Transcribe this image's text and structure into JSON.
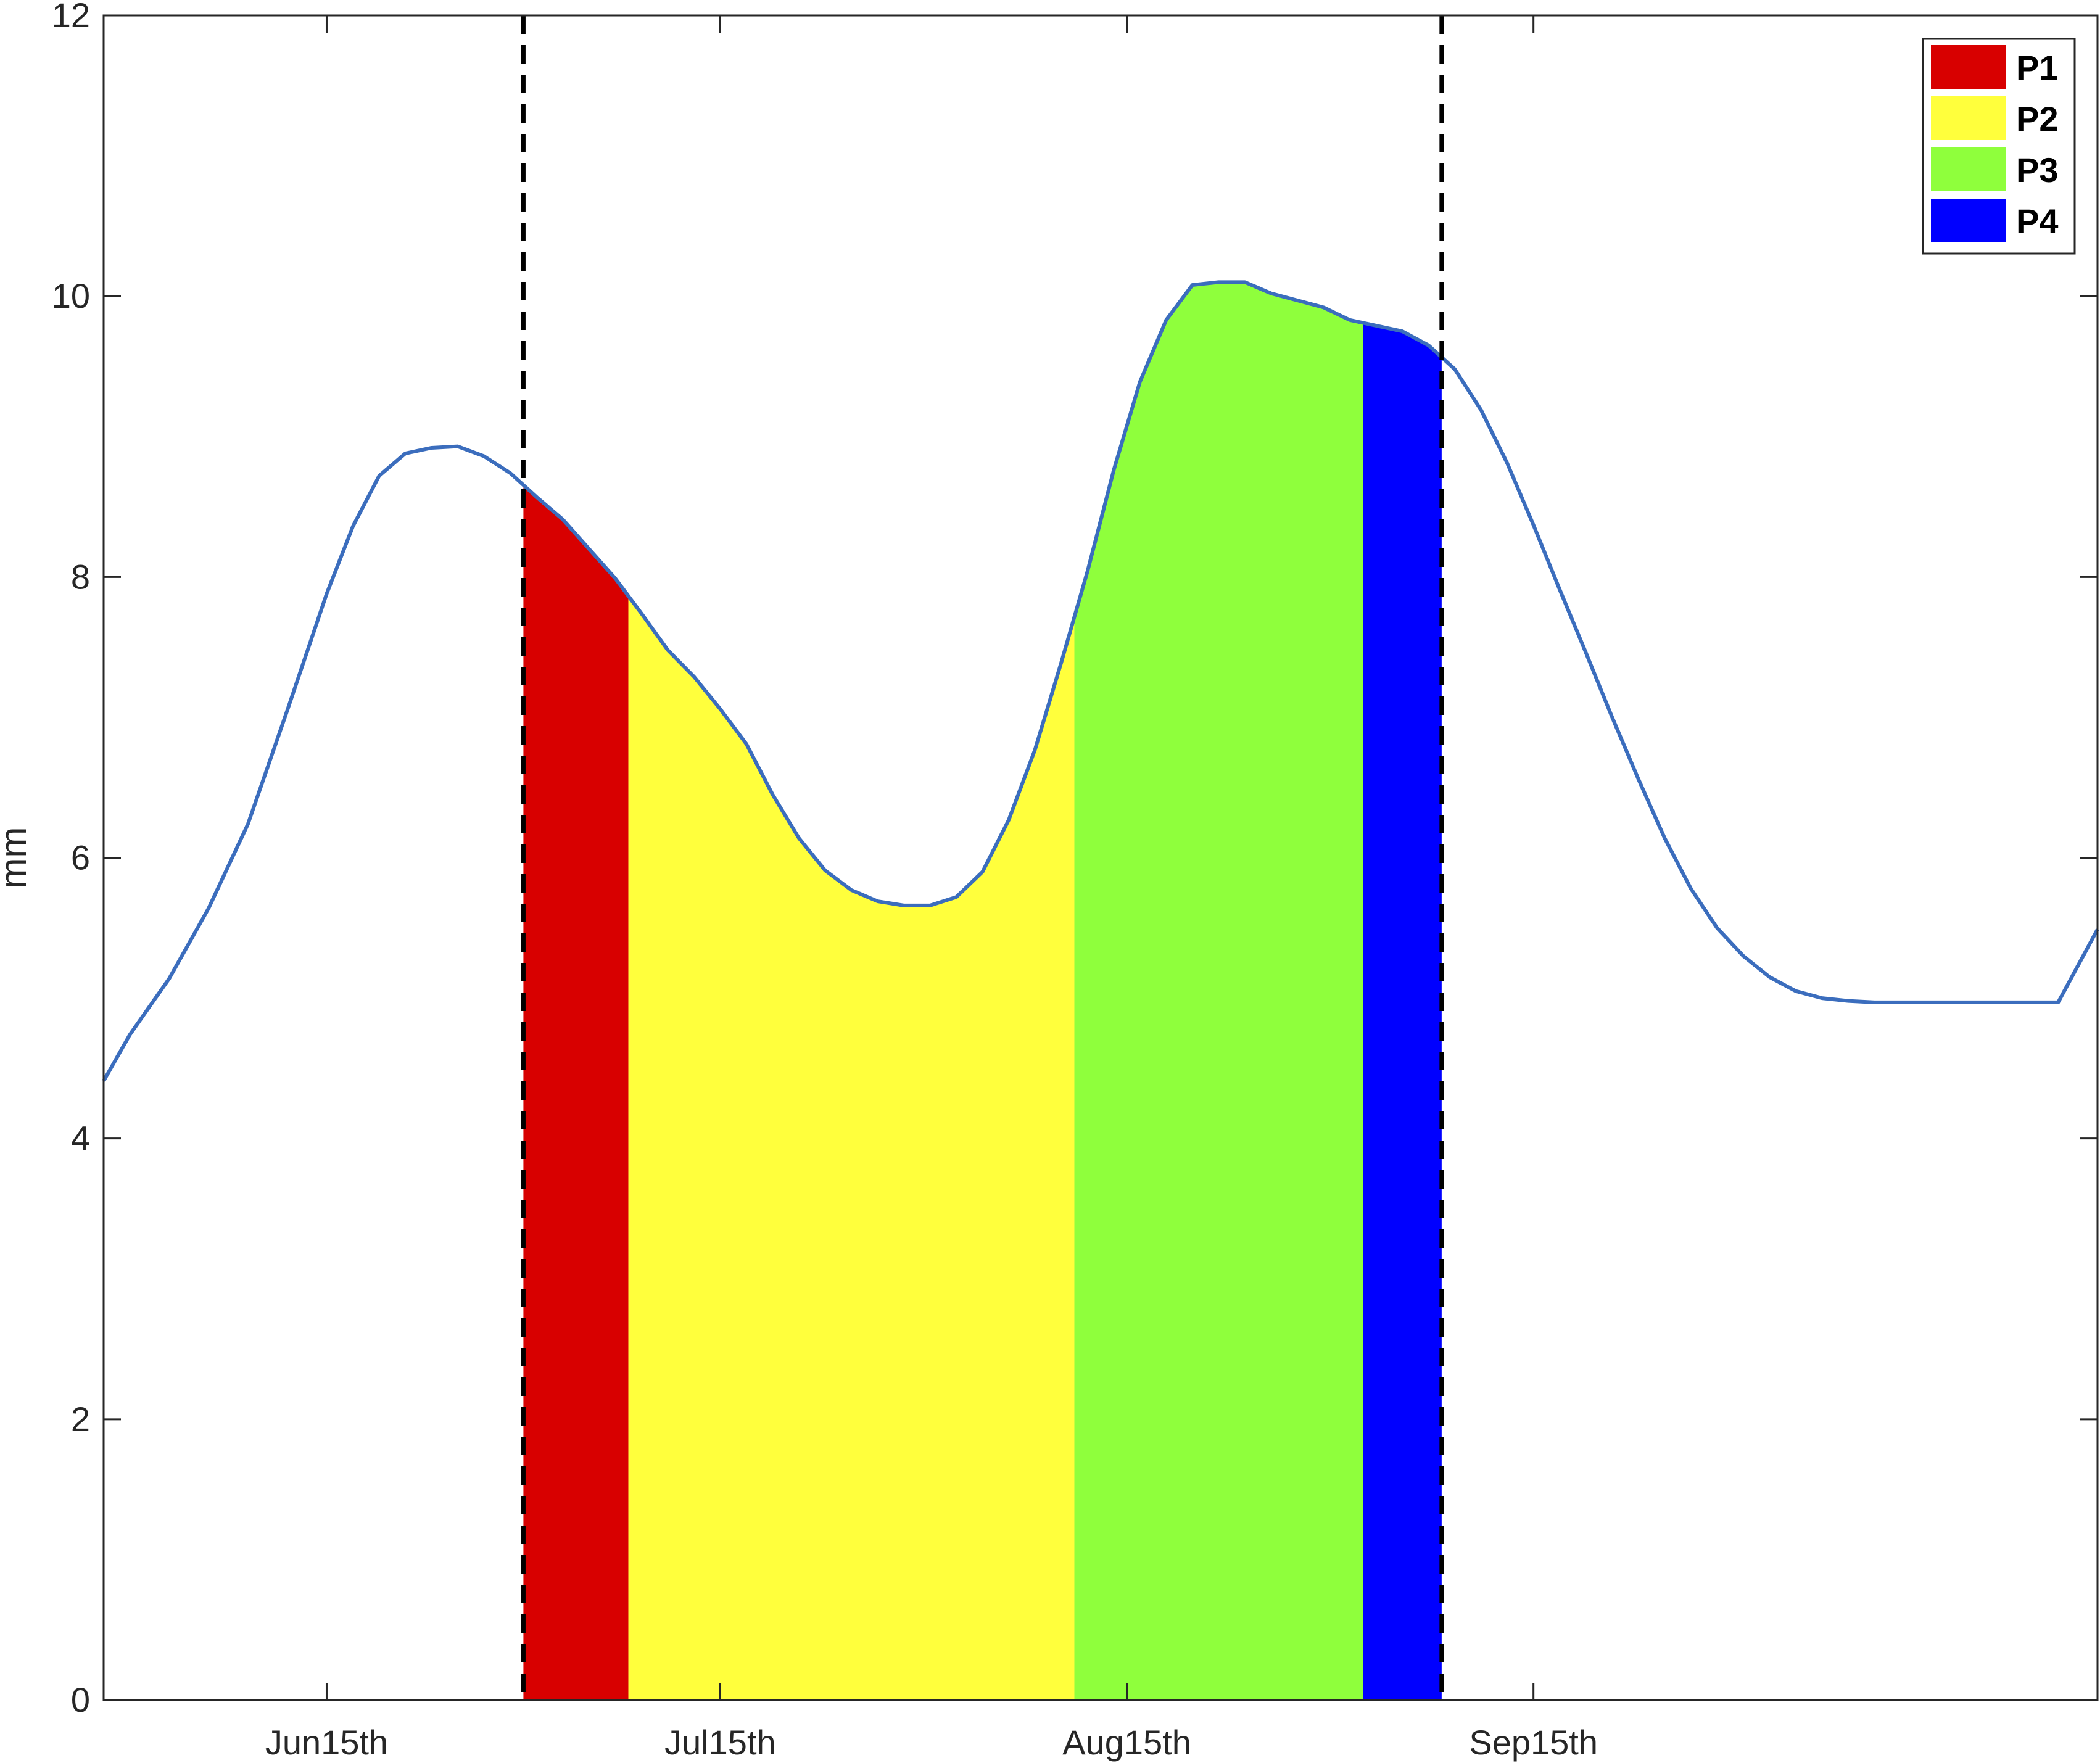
{
  "chart_data": {
    "type": "area",
    "title": "",
    "xlabel": "",
    "ylabel": "mm",
    "ylim": [
      0,
      12
    ],
    "yticks": [
      0,
      2,
      4,
      6,
      8,
      10,
      12
    ],
    "x_unit": "day of year",
    "xlim": [
      149,
      301
    ],
    "xticks": [
      {
        "x": 166,
        "label": "Jun15th"
      },
      {
        "x": 196,
        "label": "Jul15th"
      },
      {
        "x": 227,
        "label": "Aug15th"
      },
      {
        "x": 258,
        "label": "Sep15th"
      }
    ],
    "grid": false,
    "legend_position": "top-right",
    "series": [
      {
        "name": "",
        "color": "#3b6dbd",
        "x": [
          149,
          151,
          154,
          157,
          160,
          163,
          166,
          168,
          170,
          172,
          174,
          176,
          178,
          180,
          182,
          184,
          186,
          188,
          190,
          192,
          194,
          196,
          198,
          200,
          202,
          204,
          206,
          208,
          210,
          212,
          214,
          216,
          218,
          220,
          222,
          224,
          226,
          228,
          230,
          232,
          234,
          236,
          238,
          240,
          242,
          244,
          246,
          248,
          250,
          252,
          254,
          256,
          258,
          260,
          262,
          264,
          266,
          268,
          270,
          272,
          274,
          276,
          278,
          280,
          282,
          284,
          286,
          288,
          290,
          292,
          294,
          296,
          298,
          301
        ],
        "y": [
          4.41,
          4.74,
          5.14,
          5.64,
          6.24,
          7.05,
          7.88,
          8.36,
          8.72,
          8.88,
          8.92,
          8.93,
          8.86,
          8.74,
          8.57,
          8.41,
          8.2,
          7.99,
          7.74,
          7.48,
          7.29,
          7.06,
          6.81,
          6.45,
          6.14,
          5.91,
          5.77,
          5.69,
          5.66,
          5.66,
          5.72,
          5.9,
          6.27,
          6.77,
          7.39,
          8.04,
          8.76,
          9.39,
          9.83,
          10.08,
          10.1,
          10.1,
          10.02,
          9.97,
          9.92,
          9.83,
          9.79,
          9.75,
          9.65,
          9.48,
          9.19,
          8.81,
          8.37,
          7.91,
          7.46,
          7.0,
          6.56,
          6.14,
          5.78,
          5.5,
          5.3,
          5.15,
          5.05,
          5.0,
          4.98,
          4.97,
          4.97,
          4.97,
          4.97,
          4.97,
          4.97,
          4.97,
          4.97,
          5.49
        ]
      }
    ],
    "vlines": [
      {
        "x": 181,
        "style": "dashed",
        "color": "#000000"
      },
      {
        "x": 251,
        "style": "dashed",
        "color": "#000000"
      }
    ],
    "shaded_periods": [
      {
        "name": "P1",
        "color": "#d80000",
        "x_start": 181,
        "x_end": 189
      },
      {
        "name": "P2",
        "color": "#ffff3c",
        "x_start": 189,
        "x_end": 223
      },
      {
        "name": "P3",
        "color": "#8fff3c",
        "x_start": 223,
        "x_end": 245
      },
      {
        "name": "P4",
        "color": "#0000ff",
        "x_start": 245,
        "x_end": 251
      }
    ]
  }
}
